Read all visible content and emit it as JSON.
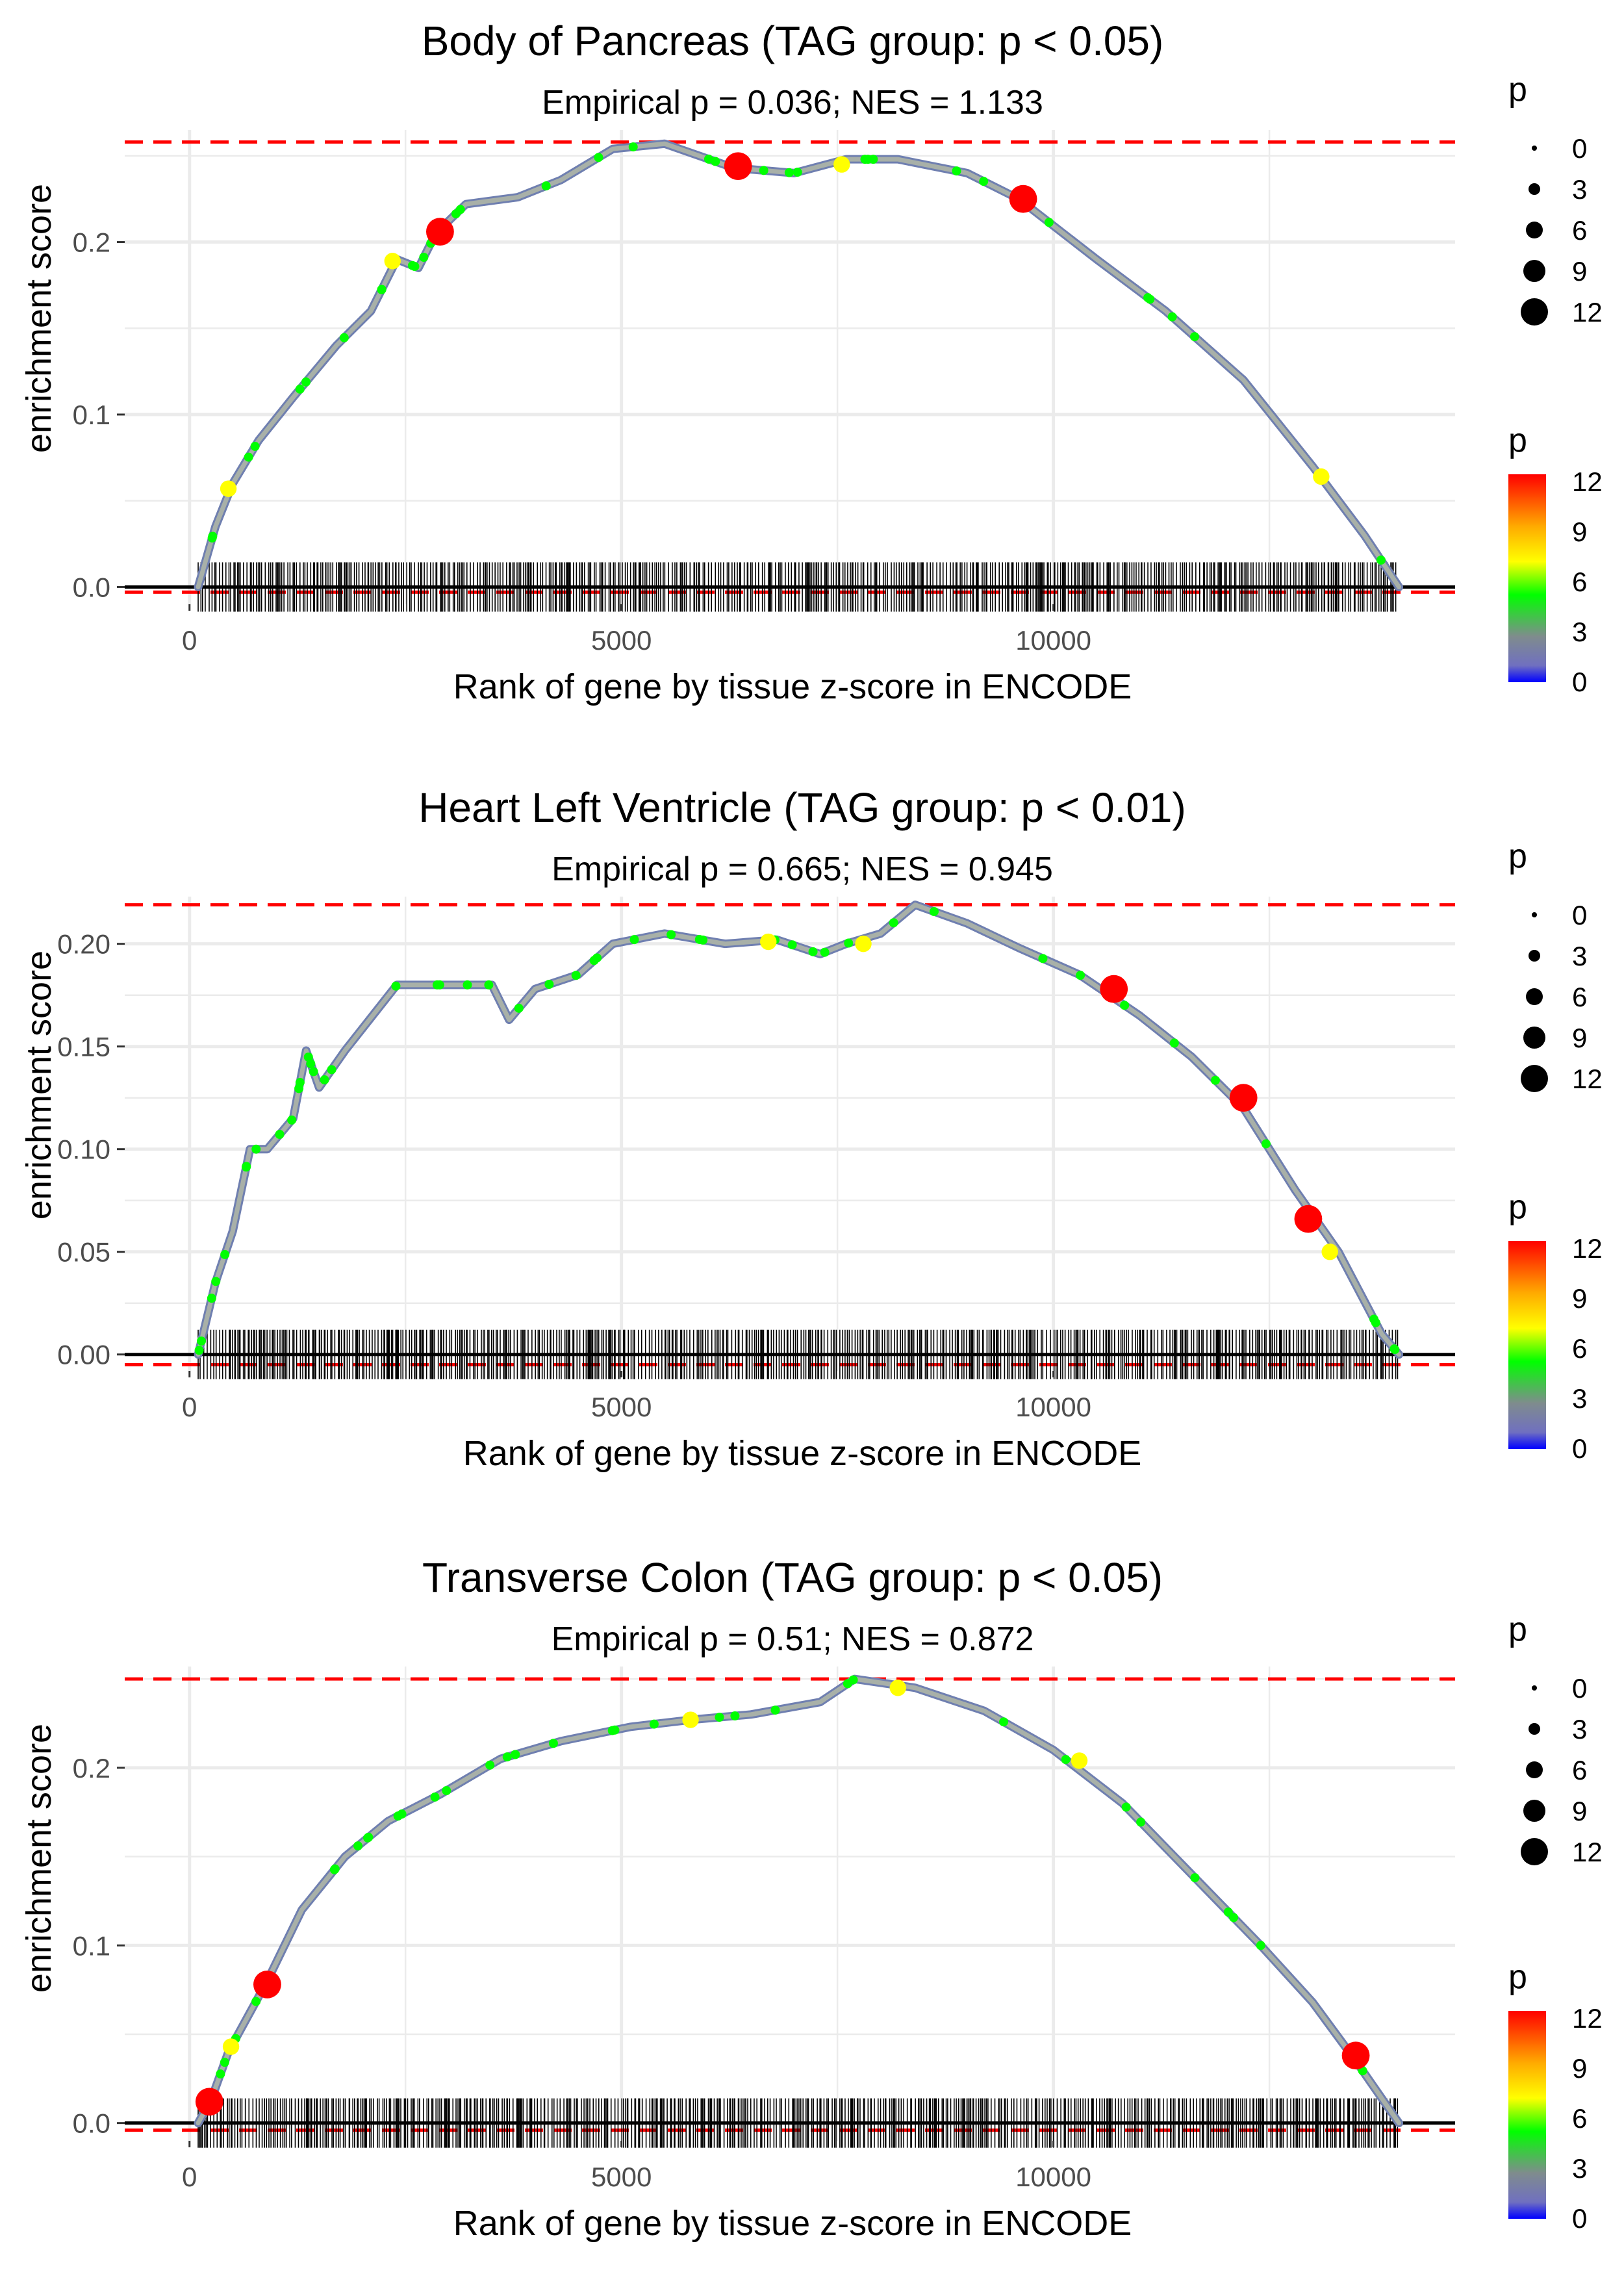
{
  "figure": {
    "x_axis_label": "Rank of gene by tissue z-score in ENCODE",
    "y_axis_label": "enrichment score",
    "size_legend_title": "p",
    "color_legend_title": "p",
    "size_legend_labels": [
      "0",
      "3",
      "6",
      "9",
      "12"
    ],
    "color_legend_labels": [
      "12",
      "9",
      "6",
      "3",
      "0"
    ],
    "colors": {
      "curve": "#8a98b8",
      "threshold_line": "#ff0000",
      "zero_line": "#000000",
      "grid": "#ebebeb",
      "high_p": "#ff0000",
      "mid_p": "#ffff00",
      "low_p": "#00ff00",
      "base_p": "#808080",
      "zero_p": "#0000ff"
    }
  },
  "chart_data": [
    {
      "type": "line",
      "title": "Body of Pancreas (TAG group: p < 0.05)",
      "subtitle": "Empirical p = 0.036; NES = 1.133",
      "xlabel": "Rank of gene by tissue z-score in ENCODE",
      "ylabel": "enrichment score",
      "xlim": [
        -750,
        14650
      ],
      "ylim": [
        -0.01,
        0.265
      ],
      "xticks": [
        0,
        5000,
        10000
      ],
      "xtick_labels": [
        "0",
        "5000",
        "10000"
      ],
      "yticks": [
        0.0,
        0.1,
        0.2
      ],
      "ytick_labels": [
        "0.0",
        "0.1",
        "0.2"
      ],
      "threshold_upper": 0.258,
      "threshold_lower": -0.003,
      "rug_x_range": [
        100,
        14000
      ],
      "curve": [
        [
          100,
          0.0
        ],
        [
          300,
          0.035
        ],
        [
          500,
          0.06
        ],
        [
          800,
          0.085
        ],
        [
          1200,
          0.11
        ],
        [
          1700,
          0.14
        ],
        [
          2100,
          0.16
        ],
        [
          2400,
          0.19
        ],
        [
          2650,
          0.185
        ],
        [
          2850,
          0.205
        ],
        [
          3200,
          0.222
        ],
        [
          3800,
          0.226
        ],
        [
          4300,
          0.236
        ],
        [
          4900,
          0.254
        ],
        [
          5500,
          0.257
        ],
        [
          6300,
          0.243
        ],
        [
          7000,
          0.24
        ],
        [
          7600,
          0.248
        ],
        [
          8200,
          0.248
        ],
        [
          9000,
          0.24
        ],
        [
          9600,
          0.225
        ],
        [
          10500,
          0.19
        ],
        [
          11300,
          0.16
        ],
        [
          12200,
          0.12
        ],
        [
          13000,
          0.07
        ],
        [
          13600,
          0.03
        ],
        [
          14000,
          0.0
        ]
      ],
      "highlights": [
        {
          "x": 450,
          "y": 0.057,
          "p": 6
        },
        {
          "x": 2350,
          "y": 0.189,
          "p": 6
        },
        {
          "x": 2900,
          "y": 0.206,
          "p": 12
        },
        {
          "x": 6350,
          "y": 0.244,
          "p": 12
        },
        {
          "x": 7550,
          "y": 0.245,
          "p": 6
        },
        {
          "x": 9650,
          "y": 0.225,
          "p": 12
        },
        {
          "x": 13100,
          "y": 0.064,
          "p": 6
        }
      ]
    },
    {
      "type": "line",
      "title": "Heart Left Ventricle (TAG group: p < 0.01)",
      "subtitle": "Empirical p = 0.665; NES = 0.945",
      "xlabel": "Rank of gene by tissue z-score in ENCODE",
      "ylabel": "enrichment score",
      "xlim": [
        -750,
        14650
      ],
      "ylim": [
        -0.008,
        0.223
      ],
      "xticks": [
        0,
        5000,
        10000
      ],
      "xtick_labels": [
        "0",
        "5000",
        "10000"
      ],
      "yticks": [
        0.0,
        0.05,
        0.1,
        0.15,
        0.2
      ],
      "ytick_labels": [
        "0.00",
        "0.05",
        "0.10",
        "0.15",
        "0.20"
      ],
      "threshold_upper": 0.219,
      "threshold_lower": -0.005,
      "rug_x_range": [
        100,
        14000
      ],
      "curve": [
        [
          100,
          0.0
        ],
        [
          300,
          0.035
        ],
        [
          500,
          0.06
        ],
        [
          700,
          0.1
        ],
        [
          900,
          0.1
        ],
        [
          1200,
          0.115
        ],
        [
          1350,
          0.148
        ],
        [
          1500,
          0.13
        ],
        [
          1800,
          0.148
        ],
        [
          2400,
          0.18
        ],
        [
          3000,
          0.18
        ],
        [
          3500,
          0.18
        ],
        [
          3700,
          0.163
        ],
        [
          4000,
          0.178
        ],
        [
          4500,
          0.185
        ],
        [
          4900,
          0.2
        ],
        [
          5500,
          0.205
        ],
        [
          6200,
          0.2
        ],
        [
          6800,
          0.202
        ],
        [
          7300,
          0.195
        ],
        [
          7600,
          0.2
        ],
        [
          8000,
          0.205
        ],
        [
          8400,
          0.219
        ],
        [
          9000,
          0.21
        ],
        [
          9600,
          0.198
        ],
        [
          10300,
          0.185
        ],
        [
          11000,
          0.165
        ],
        [
          11600,
          0.145
        ],
        [
          12200,
          0.12
        ],
        [
          12800,
          0.08
        ],
        [
          13300,
          0.05
        ],
        [
          13800,
          0.01
        ],
        [
          14000,
          0.0
        ]
      ],
      "highlights": [
        {
          "x": 6700,
          "y": 0.201,
          "p": 6
        },
        {
          "x": 7800,
          "y": 0.2,
          "p": 6
        },
        {
          "x": 10700,
          "y": 0.178,
          "p": 12
        },
        {
          "x": 12200,
          "y": 0.125,
          "p": 12
        },
        {
          "x": 12950,
          "y": 0.066,
          "p": 12
        },
        {
          "x": 13200,
          "y": 0.05,
          "p": 6
        }
      ]
    },
    {
      "type": "line",
      "title": "Transverse Colon (TAG group: p < 0.05)",
      "subtitle": "Empirical p = 0.51; NES = 0.872",
      "xlabel": "Rank of gene by tissue z-score in ENCODE",
      "ylabel": "enrichment score",
      "xlim": [
        -750,
        14650
      ],
      "ylim": [
        -0.01,
        0.257
      ],
      "xticks": [
        0,
        5000,
        10000
      ],
      "xtick_labels": [
        "0",
        "5000",
        "10000"
      ],
      "yticks": [
        0.0,
        0.1,
        0.2
      ],
      "ytick_labels": [
        "0.0",
        "0.1",
        "0.2"
      ],
      "threshold_upper": 0.25,
      "threshold_lower": -0.004,
      "rug_x_range": [
        100,
        14000
      ],
      "curve": [
        [
          100,
          0.0
        ],
        [
          250,
          0.013
        ],
        [
          450,
          0.04
        ],
        [
          900,
          0.08
        ],
        [
          1300,
          0.12
        ],
        [
          1800,
          0.15
        ],
        [
          2300,
          0.17
        ],
        [
          2900,
          0.185
        ],
        [
          3600,
          0.205
        ],
        [
          4300,
          0.215
        ],
        [
          5100,
          0.223
        ],
        [
          5800,
          0.227
        ],
        [
          6500,
          0.23
        ],
        [
          7300,
          0.237
        ],
        [
          7700,
          0.25
        ],
        [
          8400,
          0.245
        ],
        [
          9200,
          0.232
        ],
        [
          10000,
          0.21
        ],
        [
          10800,
          0.18
        ],
        [
          11600,
          0.14
        ],
        [
          12400,
          0.1
        ],
        [
          13000,
          0.068
        ],
        [
          13500,
          0.035
        ],
        [
          14000,
          0.0
        ]
      ],
      "highlights": [
        {
          "x": 230,
          "y": 0.012,
          "p": 12
        },
        {
          "x": 480,
          "y": 0.043,
          "p": 6
        },
        {
          "x": 900,
          "y": 0.078,
          "p": 12
        },
        {
          "x": 5800,
          "y": 0.227,
          "p": 6
        },
        {
          "x": 8200,
          "y": 0.245,
          "p": 6
        },
        {
          "x": 10300,
          "y": 0.204,
          "p": 6
        },
        {
          "x": 13500,
          "y": 0.038,
          "p": 12
        }
      ]
    }
  ]
}
